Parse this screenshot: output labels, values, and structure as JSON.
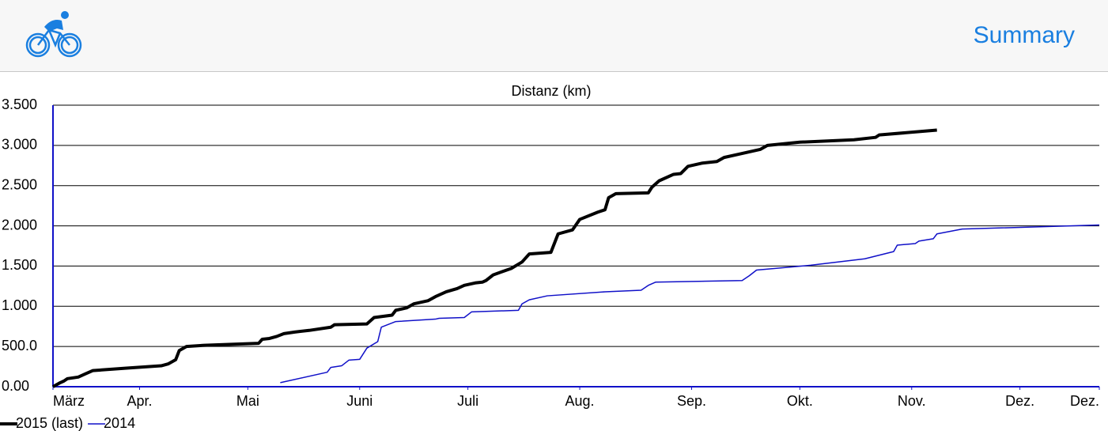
{
  "header": {
    "button": "Summary"
  },
  "chart_data": {
    "type": "line",
    "title": "Distanz (km)",
    "xlim": [
      0,
      290
    ],
    "xticks": [
      {
        "value": 0,
        "label": "März"
      },
      {
        "value": 24,
        "label": "Apr."
      },
      {
        "value": 54,
        "label": "Mai"
      },
      {
        "value": 85,
        "label": "Juni"
      },
      {
        "value": 115,
        "label": "Juli"
      },
      {
        "value": 146,
        "label": "Aug."
      },
      {
        "value": 177,
        "label": "Sep."
      },
      {
        "value": 207,
        "label": "Okt."
      },
      {
        "value": 238,
        "label": "Nov."
      },
      {
        "value": 268,
        "label": "Dez."
      },
      {
        "value": 290,
        "label": "Dez."
      }
    ],
    "ylim": [
      0,
      3500
    ],
    "yticks": [
      {
        "value": 0,
        "label": "0.00"
      },
      {
        "value": 500,
        "label": "500.0"
      },
      {
        "value": 1000,
        "label": "1.000"
      },
      {
        "value": 1500,
        "label": "1.500"
      },
      {
        "value": 2000,
        "label": "2.000"
      },
      {
        "value": 2500,
        "label": "2.500"
      },
      {
        "value": 3000,
        "label": "3.000"
      },
      {
        "value": 3500,
        "label": "3.500"
      }
    ],
    "grid": true,
    "legend": "bottom-left",
    "series": [
      {
        "name": "2015 (last)",
        "color": "#000000",
        "x": [
          0,
          2,
          3,
          4,
          7,
          9,
          11,
          20,
          30,
          32,
          34,
          35,
          37,
          42,
          57,
          58,
          60,
          62,
          64,
          67,
          71,
          77,
          78,
          87,
          89,
          94,
          95,
          98,
          100,
          104,
          106,
          109,
          112,
          114,
          117,
          119,
          120,
          122,
          127,
          130,
          132,
          138,
          140,
          144,
          146,
          151,
          153,
          154,
          156,
          165,
          166,
          168,
          172,
          174,
          176,
          180,
          184,
          186,
          190,
          196,
          198,
          207,
          222,
          228,
          229,
          245
        ],
        "values": [
          0,
          50,
          70,
          100,
          120,
          160,
          200,
          230,
          260,
          285,
          335,
          450,
          500,
          515,
          540,
          590,
          600,
          625,
          660,
          680,
          700,
          740,
          770,
          780,
          860,
          890,
          950,
          980,
          1030,
          1070,
          1120,
          1180,
          1220,
          1260,
          1290,
          1300,
          1320,
          1390,
          1470,
          1550,
          1650,
          1670,
          1900,
          1950,
          2080,
          2170,
          2200,
          2350,
          2400,
          2410,
          2480,
          2560,
          2640,
          2650,
          2740,
          2780,
          2800,
          2850,
          2890,
          2950,
          3000,
          3040,
          3070,
          3100,
          3130,
          3190
        ]
      },
      {
        "name": "2014",
        "color": "#1010c8",
        "x": [
          63,
          76,
          77,
          80,
          82,
          85,
          87,
          90,
          91,
          95,
          106,
          107,
          114,
          116,
          129,
          130,
          132,
          137,
          153,
          163,
          165,
          167,
          191,
          193,
          195,
          210,
          225,
          233,
          234,
          239,
          240,
          244,
          245,
          252,
          290
        ],
        "values": [
          50,
          180,
          240,
          260,
          330,
          340,
          480,
          560,
          740,
          810,
          840,
          850,
          860,
          930,
          950,
          1030,
          1080,
          1130,
          1180,
          1200,
          1260,
          1300,
          1320,
          1380,
          1450,
          1510,
          1590,
          1680,
          1760,
          1780,
          1810,
          1840,
          1900,
          1960,
          2010
        ]
      }
    ]
  }
}
